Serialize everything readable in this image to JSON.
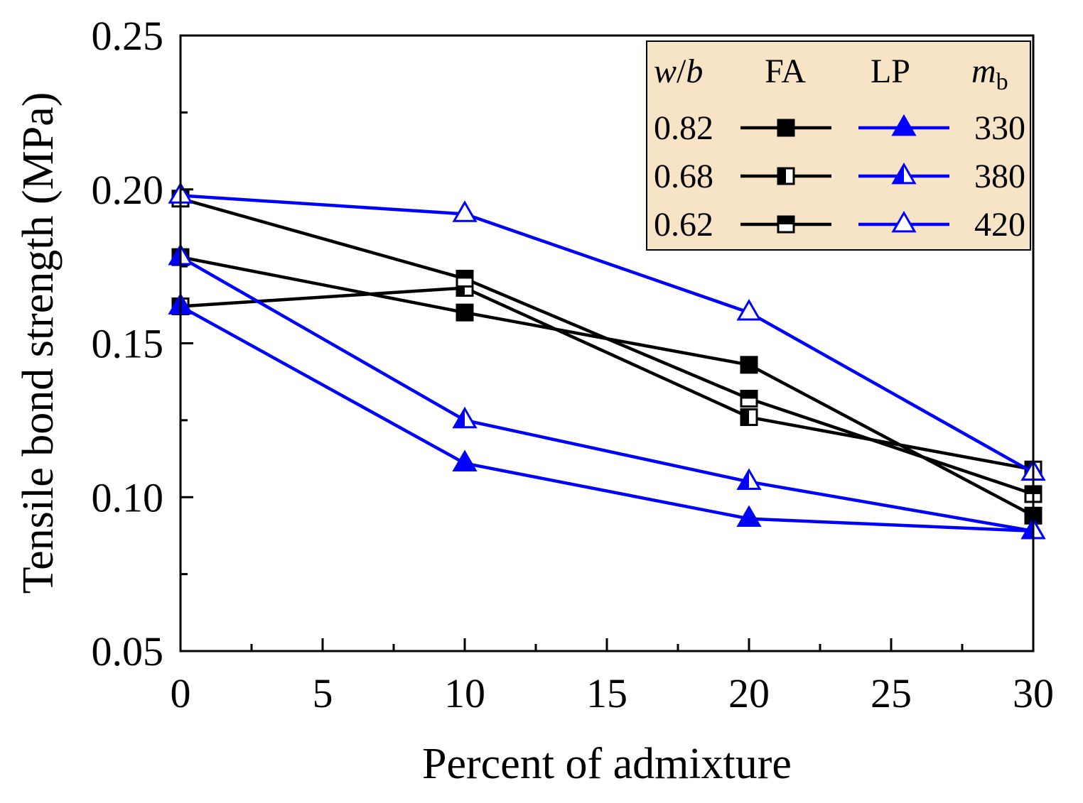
{
  "chart_data": {
    "type": "line",
    "title": "",
    "xlabel": "Percent of admixture",
    "ylabel": "Tensile bond strength (MPa)",
    "x": [
      0,
      10,
      20,
      30
    ],
    "xlim": [
      0,
      30
    ],
    "ylim": [
      0.05,
      0.25
    ],
    "x_ticks": [
      "0",
      "5",
      "10",
      "15",
      "20",
      "25",
      "30"
    ],
    "y_ticks": [
      "0.05",
      "0.10",
      "0.15",
      "0.20",
      "0.25"
    ],
    "grid": false,
    "legend_position": "top-right",
    "legend": {
      "header": {
        "wb_italic": "w",
        "wb_slash": "/",
        "wb_b": "b",
        "fa": "FA",
        "lp": "LP",
        "mb_m": "m",
        "mb_sub": "b"
      },
      "rows": [
        {
          "wb": "0.82",
          "mb": "330"
        },
        {
          "wb": "0.68",
          "mb": "380"
        },
        {
          "wb": "0.62",
          "mb": "420"
        }
      ]
    },
    "series": [
      {
        "name": "FA w/b 0.82 mb 330",
        "group": "FA",
        "color": "#000000",
        "marker": "square-filled",
        "values": [
          0.178,
          0.16,
          0.143,
          0.094
        ]
      },
      {
        "name": "FA w/b 0.68 mb 380",
        "group": "FA",
        "color": "#000000",
        "marker": "square-left-half",
        "values": [
          0.162,
          0.168,
          0.126,
          0.109
        ]
      },
      {
        "name": "FA w/b 0.62 mb 420",
        "group": "FA",
        "color": "#000000",
        "marker": "square-top-half",
        "values": [
          0.197,
          0.171,
          0.132,
          0.101
        ]
      },
      {
        "name": "LP w/b 0.82 mb 330",
        "group": "LP",
        "color": "#0000ff",
        "marker": "triangle-filled",
        "values": [
          0.162,
          0.111,
          0.093,
          0.089
        ]
      },
      {
        "name": "LP w/b 0.68 mb 380",
        "group": "LP",
        "color": "#0000ff",
        "marker": "triangle-left-half",
        "values": [
          0.178,
          0.125,
          0.105,
          0.089
        ]
      },
      {
        "name": "LP w/b 0.62 mb 420",
        "group": "LP",
        "color": "#0000ff",
        "marker": "triangle-open",
        "values": [
          0.198,
          0.192,
          0.16,
          0.108
        ]
      }
    ]
  }
}
